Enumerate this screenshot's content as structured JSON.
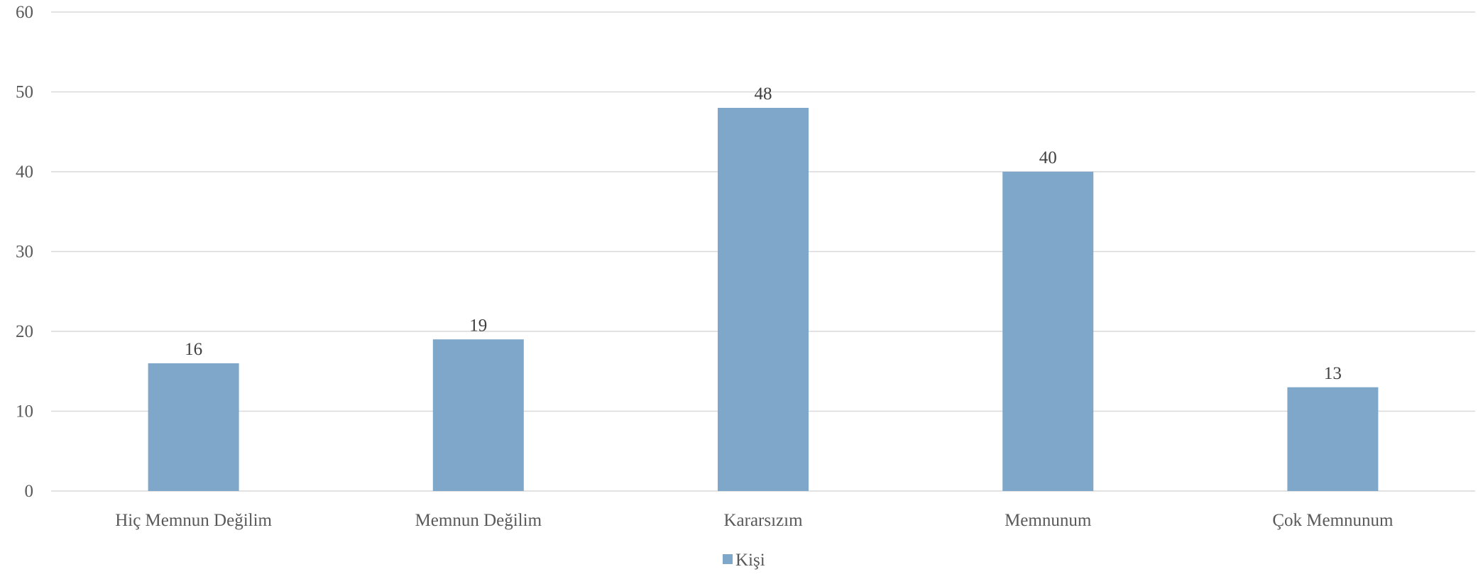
{
  "chart_data": {
    "type": "bar",
    "categories": [
      "Hiç Memnun Değilim",
      "Memnun Değilim",
      "Kararsızım",
      "Memnunum",
      "Çok Memnunum"
    ],
    "series": [
      {
        "name": "Kişi",
        "values": [
          16,
          19,
          48,
          40,
          13
        ]
      }
    ],
    "ylim": [
      0,
      60
    ],
    "yticks": [
      "0",
      "10",
      "20",
      "30",
      "40",
      "50",
      "60"
    ],
    "grid": true,
    "legend": "bottom",
    "data_labels": true,
    "colors": {
      "bar": "#7fa7c9",
      "grid": "#d9d9d9",
      "text": "#595959"
    }
  }
}
